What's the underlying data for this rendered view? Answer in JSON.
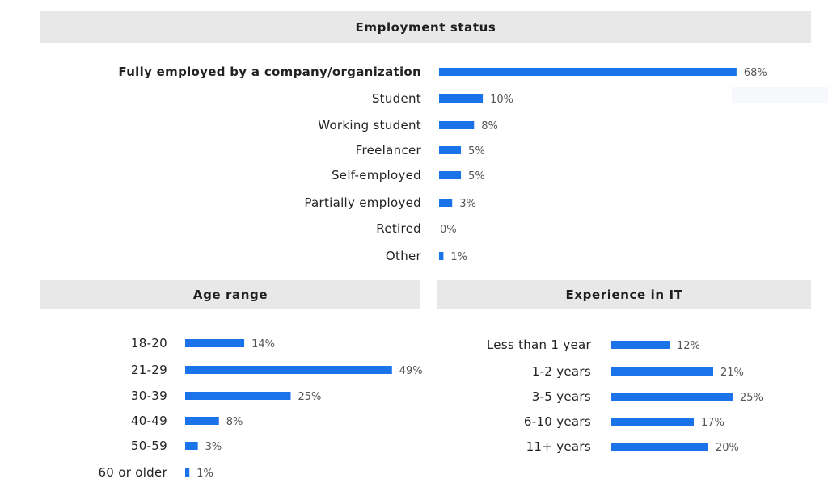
{
  "colors": {
    "bar": "#1a73e8",
    "header_bg": "#e8e8e8",
    "label": "#222222",
    "value": "#555555"
  },
  "headers": {
    "employment": "Employment status",
    "age": "Age range",
    "experience": "Experience in IT"
  },
  "chart_data": [
    {
      "type": "bar",
      "orientation": "horizontal",
      "title": "Employment status",
      "categories": [
        "Fully employed by a company/organization",
        "Student",
        "Working student",
        "Freelancer",
        "Self-employed",
        "Partially employed",
        "Retired",
        "Other"
      ],
      "values": [
        68,
        10,
        8,
        5,
        5,
        3,
        0,
        1
      ],
      "value_labels": [
        "68%",
        "10%",
        "8%",
        "5%",
        "5%",
        "3%",
        "0%",
        "1%"
      ],
      "emphasized_category": "Fully employed by a company/organization",
      "unit": "%"
    },
    {
      "type": "bar",
      "orientation": "horizontal",
      "title": "Age range",
      "categories": [
        "18-20",
        "21-29",
        "30-39",
        "40-49",
        "50-59",
        "60 or older"
      ],
      "values": [
        14,
        49,
        25,
        8,
        3,
        1
      ],
      "value_labels": [
        "14%",
        "49%",
        "25%",
        "8%",
        "3%",
        "1%"
      ],
      "unit": "%"
    },
    {
      "type": "bar",
      "orientation": "horizontal",
      "title": "Experience in IT",
      "categories": [
        "Less than 1 year",
        "1-2 years",
        "3-5 years",
        "6-10 years",
        "11+ years"
      ],
      "values": [
        12,
        21,
        25,
        17,
        20
      ],
      "value_labels": [
        "12%",
        "21%",
        "25%",
        "17%",
        "20%"
      ],
      "unit": "%"
    }
  ]
}
